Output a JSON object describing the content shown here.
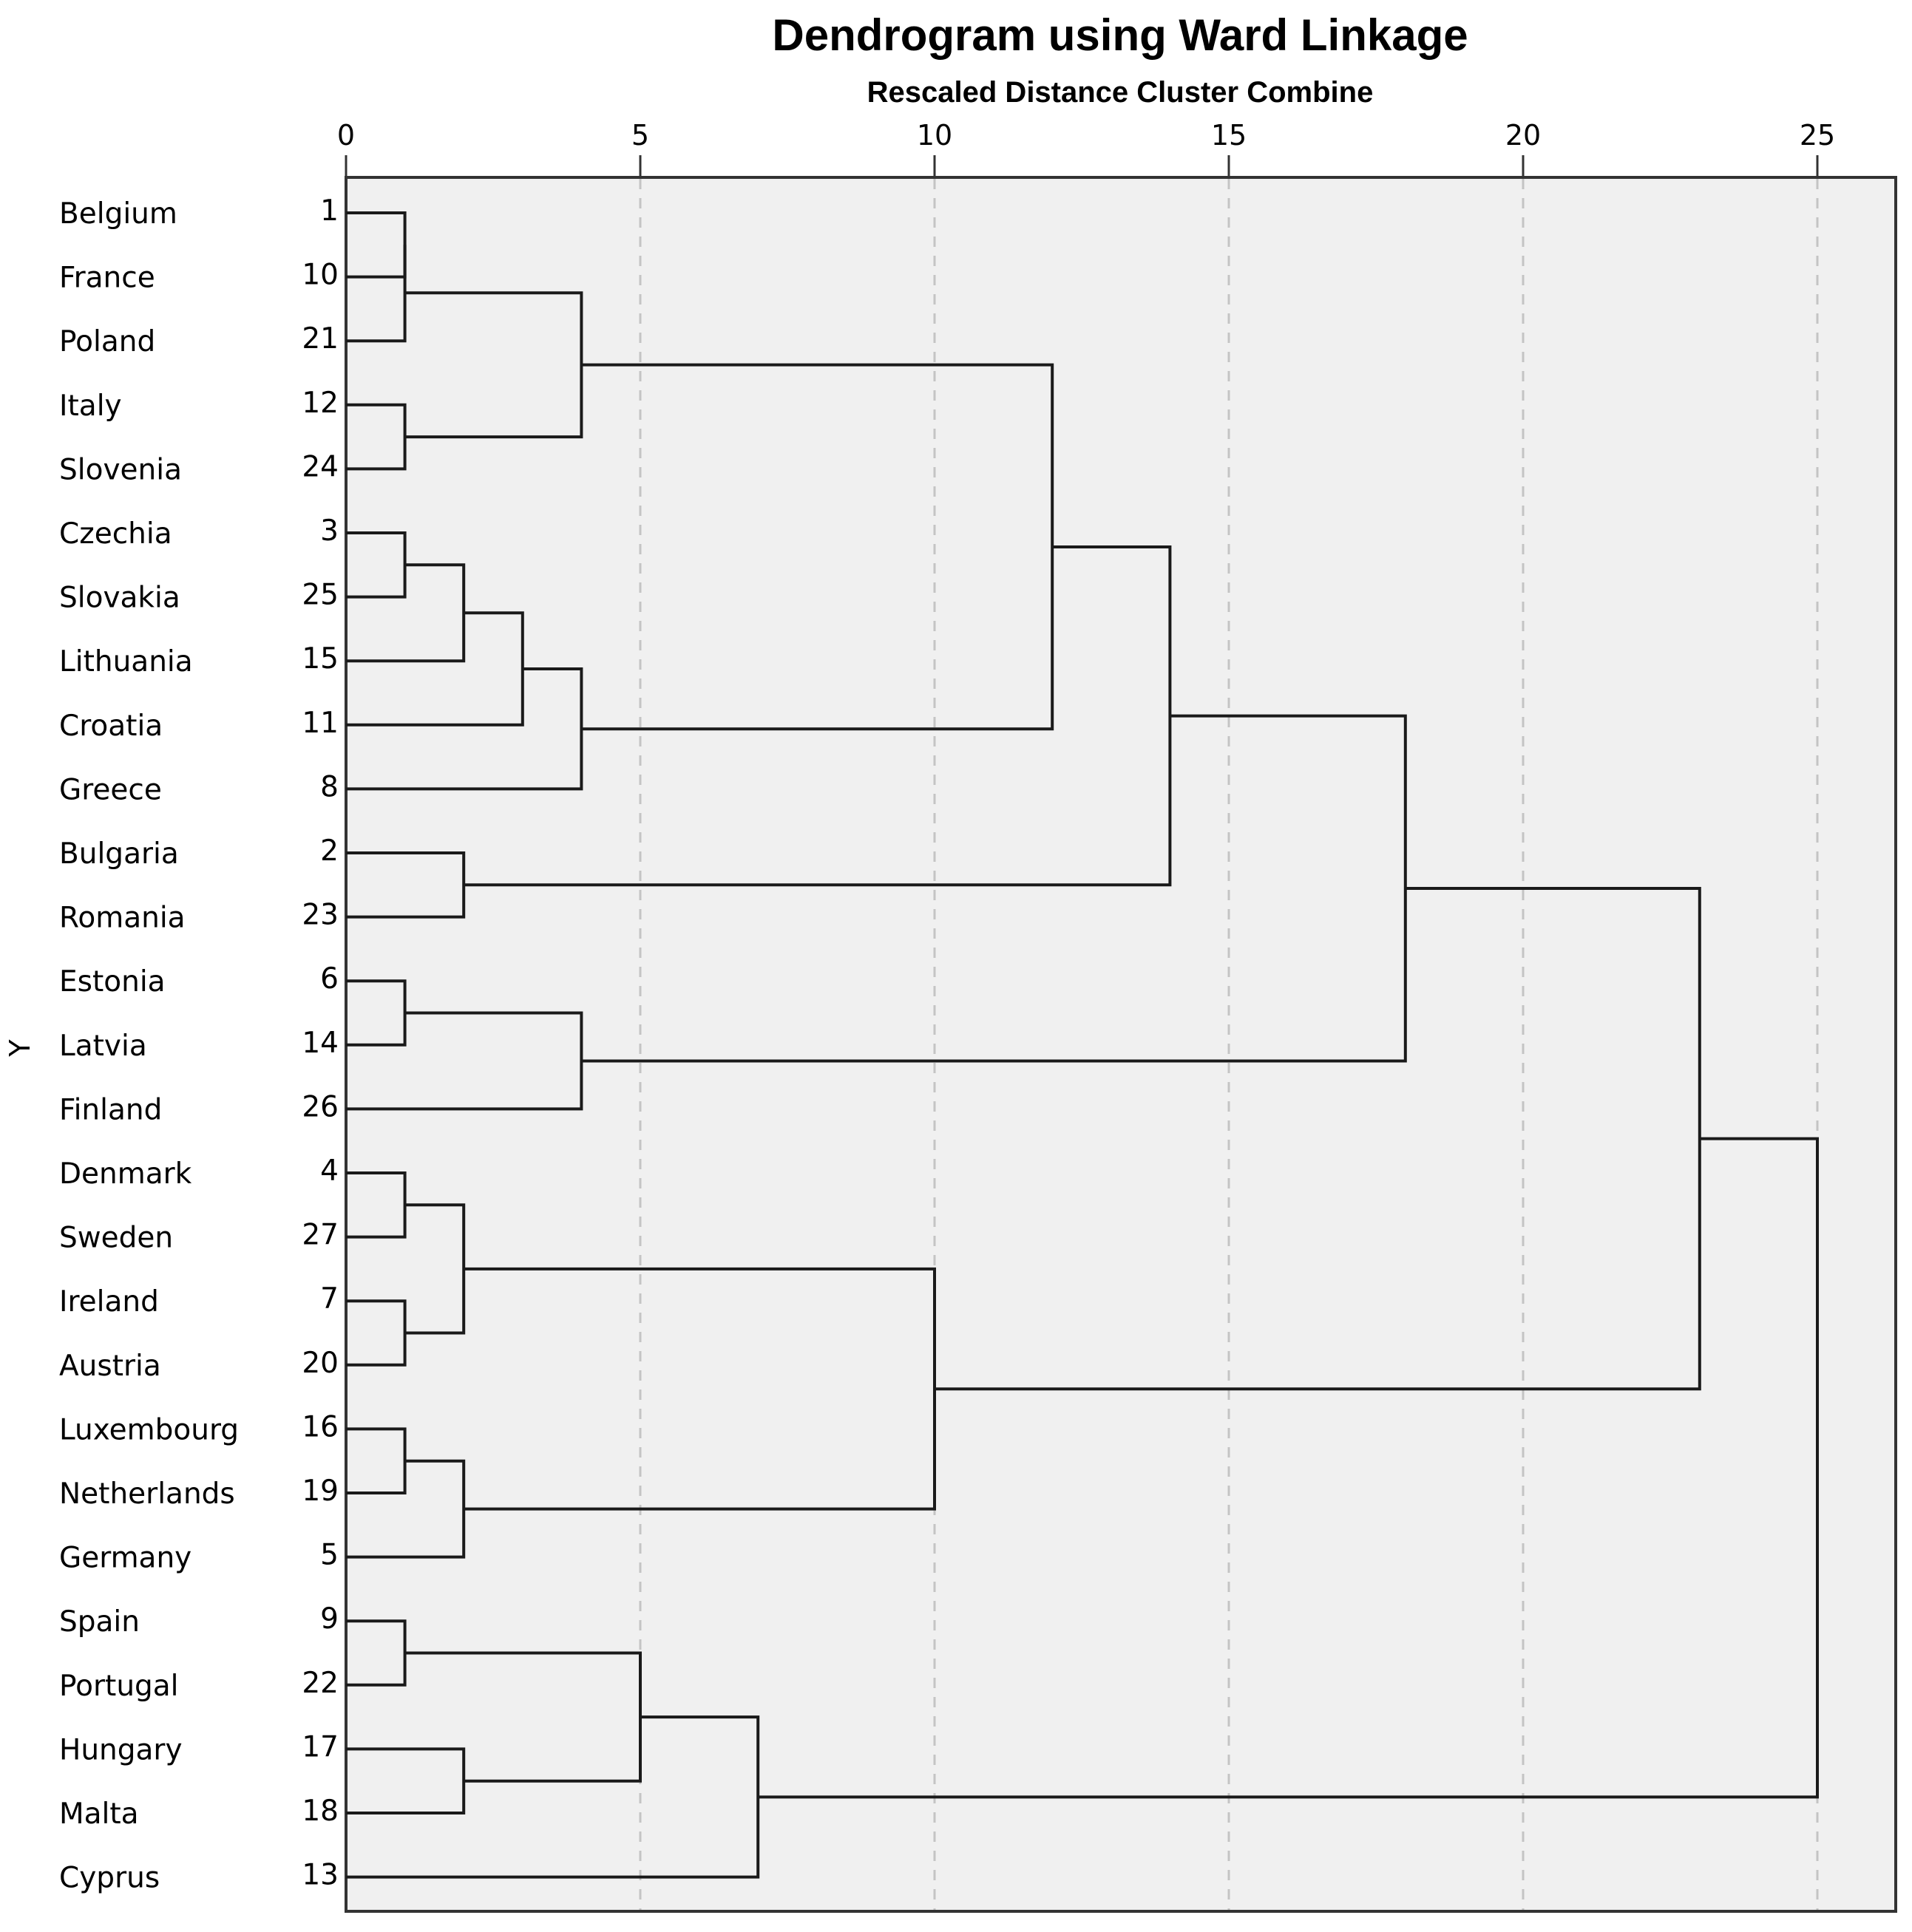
{
  "chart_data": {
    "type": "dendrogram",
    "title": "Dendrogram using Ward Linkage",
    "subtitle": "Rescaled Distance Cluster Combine",
    "ylabel": "Y",
    "xlim": [
      0,
      25
    ],
    "xticks": [
      "0",
      "5",
      "10",
      "15",
      "20",
      "25"
    ],
    "leaves": [
      {
        "name": "Belgium",
        "id": "1"
      },
      {
        "name": "France",
        "id": "10"
      },
      {
        "name": "Poland",
        "id": "21"
      },
      {
        "name": "Italy",
        "id": "12"
      },
      {
        "name": "Slovenia",
        "id": "24"
      },
      {
        "name": "Czechia",
        "id": "3"
      },
      {
        "name": "Slovakia",
        "id": "25"
      },
      {
        "name": "Lithuania",
        "id": "15"
      },
      {
        "name": "Croatia",
        "id": "11"
      },
      {
        "name": "Greece",
        "id": "8"
      },
      {
        "name": "Bulgaria",
        "id": "2"
      },
      {
        "name": "Romania",
        "id": "23"
      },
      {
        "name": "Estonia",
        "id": "6"
      },
      {
        "name": "Latvia",
        "id": "14"
      },
      {
        "name": "Finland",
        "id": "26"
      },
      {
        "name": "Denmark",
        "id": "4"
      },
      {
        "name": "Sweden",
        "id": "27"
      },
      {
        "name": "Ireland",
        "id": "7"
      },
      {
        "name": "Austria",
        "id": "20"
      },
      {
        "name": "Luxembourg",
        "id": "16"
      },
      {
        "name": "Netherlands",
        "id": "19"
      },
      {
        "name": "Germany",
        "id": "5"
      },
      {
        "name": "Spain",
        "id": "9"
      },
      {
        "name": "Portugal",
        "id": "22"
      },
      {
        "name": "Hungary",
        "id": "17"
      },
      {
        "name": "Malta",
        "id": "18"
      },
      {
        "name": "Cyprus",
        "id": "13"
      }
    ],
    "merges": [
      {
        "children": [
          "L0",
          "L1"
        ],
        "height": 1
      },
      {
        "children": [
          "M0",
          "L2"
        ],
        "height": 1
      },
      {
        "children": [
          "L3",
          "L4"
        ],
        "height": 1
      },
      {
        "children": [
          "M1",
          "M2"
        ],
        "height": 4
      },
      {
        "children": [
          "L5",
          "L6"
        ],
        "height": 1
      },
      {
        "children": [
          "M4",
          "L7"
        ],
        "height": 2
      },
      {
        "children": [
          "M5",
          "L8"
        ],
        "height": 3
      },
      {
        "children": [
          "M6",
          "L9"
        ],
        "height": 4
      },
      {
        "children": [
          "M3",
          "M7"
        ],
        "height": 12
      },
      {
        "children": [
          "L10",
          "L11"
        ],
        "height": 2
      },
      {
        "children": [
          "M8",
          "M9"
        ],
        "height": 14
      },
      {
        "children": [
          "L12",
          "L13"
        ],
        "height": 1
      },
      {
        "children": [
          "M11",
          "L14"
        ],
        "height": 4
      },
      {
        "children": [
          "M10",
          "M12"
        ],
        "height": 18
      },
      {
        "children": [
          "L15",
          "L16"
        ],
        "height": 1
      },
      {
        "children": [
          "L17",
          "L18"
        ],
        "height": 1
      },
      {
        "children": [
          "M14",
          "M15"
        ],
        "height": 2
      },
      {
        "children": [
          "L19",
          "L20"
        ],
        "height": 1
      },
      {
        "children": [
          "M17",
          "L21"
        ],
        "height": 2
      },
      {
        "children": [
          "M16",
          "M18"
        ],
        "height": 10
      },
      {
        "children": [
          "M13",
          "M19"
        ],
        "height": 23
      },
      {
        "children": [
          "L22",
          "L23"
        ],
        "height": 1
      },
      {
        "children": [
          "L24",
          "L25"
        ],
        "height": 2
      },
      {
        "children": [
          "M21",
          "M22"
        ],
        "height": 5
      },
      {
        "children": [
          "M23",
          "L26"
        ],
        "height": 7
      },
      {
        "children": [
          "M20",
          "M24"
        ],
        "height": 25
      }
    ]
  }
}
